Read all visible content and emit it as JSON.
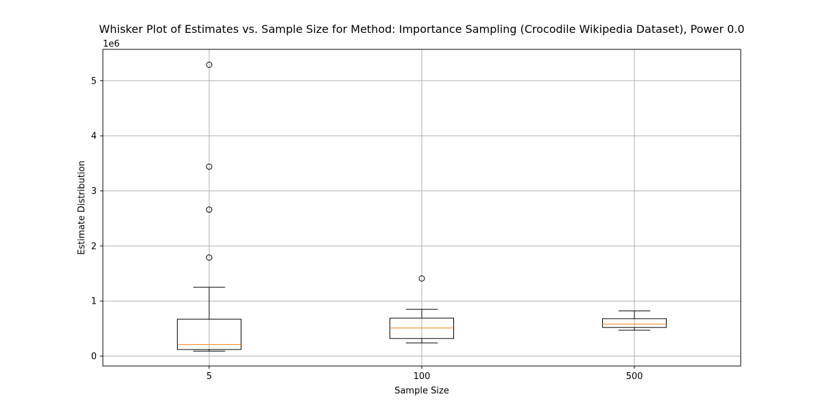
{
  "chart_data": {
    "type": "box",
    "title": "Whisker Plot of Estimates vs. Sample Size for Method: Importance Sampling (Crocodile Wikipedia Dataset), Power 0.0",
    "xlabel": "Sample Size",
    "ylabel": "Estimate Distribution",
    "y_offset_label": "1e6",
    "y_scale": 1000000,
    "ylim": [
      -180000,
      5570000
    ],
    "y_ticks": [
      0,
      1,
      2,
      3,
      4,
      5
    ],
    "grid": true,
    "categories": [
      "5",
      "100",
      "500"
    ],
    "boxes": [
      {
        "category": "5",
        "whisker_low": 90000,
        "q1": 120000,
        "median": 210000,
        "q3": 670000,
        "whisker_high": 1250000,
        "outliers": [
          1790000,
          2660000,
          3440000,
          5290000
        ]
      },
      {
        "category": "100",
        "whisker_low": 240000,
        "q1": 320000,
        "median": 510000,
        "q3": 690000,
        "whisker_high": 850000,
        "outliers": [
          1410000
        ]
      },
      {
        "category": "500",
        "whisker_low": 470000,
        "q1": 520000,
        "median": 580000,
        "q3": 680000,
        "whisker_high": 820000,
        "outliers": []
      }
    ],
    "colors": {
      "box": "#000000",
      "median": "#ff7f0e",
      "grid": "#b0b0b0",
      "outlier": "#000000"
    }
  }
}
